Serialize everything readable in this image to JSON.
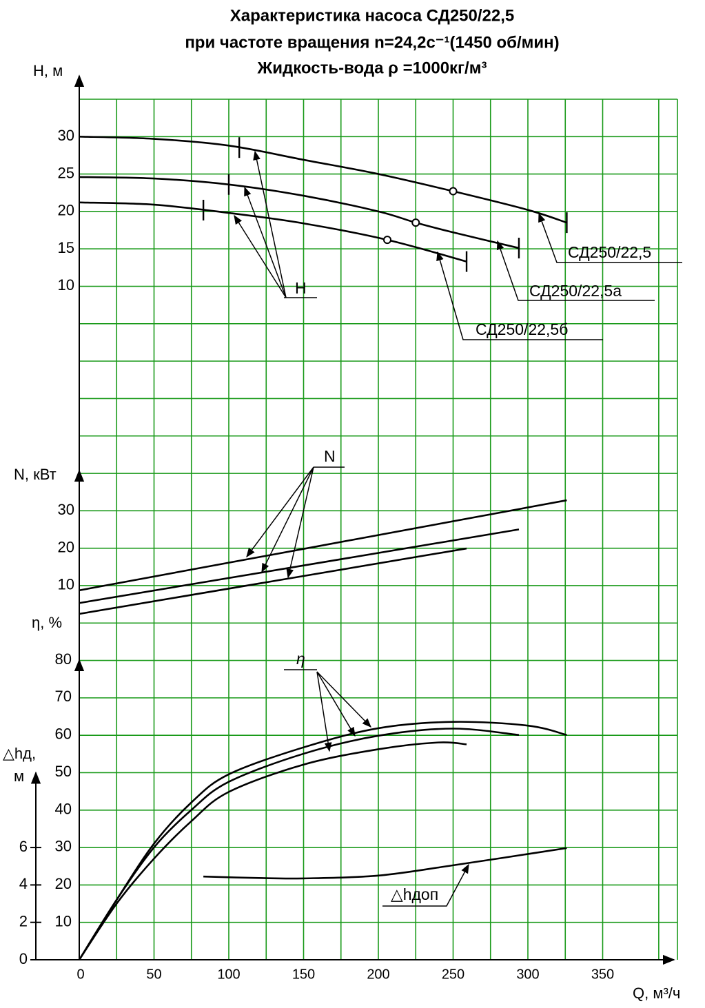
{
  "chart_data": {
    "type": "line",
    "title": [
      "Характеристика насоса СД250/22,5",
      "при частоте вращения n=24,2c⁻¹(1450 об/мин)",
      "Жидкость-вода ρ =1000кг/м³"
    ],
    "x_label": "Q, м³/ч",
    "xlim": [
      0,
      400
    ],
    "xticks": [
      0,
      50,
      100,
      150,
      200,
      250,
      300,
      350
    ],
    "grid": true,
    "grid_color": "#1a9a1a",
    "color": "#000000",
    "axes": [
      {
        "label": "H, м",
        "ylim": [
          0,
          35
        ],
        "yticks": [
          10,
          15,
          20,
          25,
          30
        ],
        "annotation": "H",
        "series": [
          {
            "name": "СД250/22,5",
            "x": [
              0,
              50,
              100,
              150,
              200,
              250,
              300,
              326
            ],
            "values": [
              30,
              29.7,
              28.8,
              26.9,
              25.0,
              22.7,
              20.2,
              18.5
            ],
            "working_range": [
              107,
              326
            ],
            "optimum": [
              250,
              22.7
            ]
          },
          {
            "name": "СД250/22,5а",
            "x": [
              0,
              50,
              100,
              150,
              200,
              225,
              250,
              294
            ],
            "values": [
              24.6,
              24.4,
              23.6,
              22.1,
              20.0,
              18.5,
              17.2,
              15.1
            ],
            "working_range": [
              100,
              294
            ],
            "optimum": [
              225,
              18.5
            ]
          },
          {
            "name": "СД250/22,5б",
            "x": [
              0,
              50,
              100,
              150,
              206,
              259
            ],
            "values": [
              21.2,
              20.9,
              19.8,
              18.4,
              16.2,
              13.3
            ],
            "working_range": [
              83,
              259
            ],
            "optimum": [
              206,
              16.2
            ]
          }
        ]
      },
      {
        "label": "N, кВт",
        "ylim": [
          0,
          40
        ],
        "yticks": [
          10,
          20,
          30
        ],
        "annotation": "N",
        "series": [
          {
            "x": [
              0,
              326
            ],
            "values": [
              8.7,
              32.8
            ]
          },
          {
            "x": [
              0,
              294
            ],
            "values": [
              5.3,
              25.0
            ]
          },
          {
            "x": [
              0,
              259
            ],
            "values": [
              2.4,
              19.9
            ]
          }
        ]
      },
      {
        "label": "η, %",
        "ylim": [
          0,
          80
        ],
        "yticks": [
          10,
          20,
          30,
          40,
          50,
          60,
          70,
          80
        ],
        "annotation": "η",
        "series": [
          {
            "x": [
              0,
              25,
              50,
              75,
              100,
              150,
              200,
              250,
              300,
              326
            ],
            "values": [
              0,
              16,
              31,
              42,
              49.5,
              56.7,
              61.8,
              63.5,
              62.5,
              60
            ]
          },
          {
            "x": [
              0,
              25,
              50,
              75,
              100,
              150,
              200,
              250,
              294
            ],
            "values": [
              0,
              16,
              30,
              40,
              47.5,
              55,
              59.8,
              61.7,
              60
            ]
          },
          {
            "x": [
              0,
              25,
              50,
              75,
              100,
              150,
              200,
              240,
              259
            ],
            "values": [
              0,
              15,
              27,
              37,
              44.8,
              52.1,
              56.2,
              58,
              57.5
            ]
          }
        ]
      },
      {
        "label": [
          "△hд,",
          "м"
        ],
        "ylim": [
          0,
          10
        ],
        "yticks": [
          0,
          2,
          4,
          6
        ],
        "series": [
          {
            "name": "△hдоп",
            "x": [
              83,
              120,
              150,
              200,
              250,
              326
            ],
            "values": [
              4.45,
              4.37,
              4.35,
              4.5,
              5.05,
              5.97
            ]
          }
        ]
      }
    ]
  }
}
